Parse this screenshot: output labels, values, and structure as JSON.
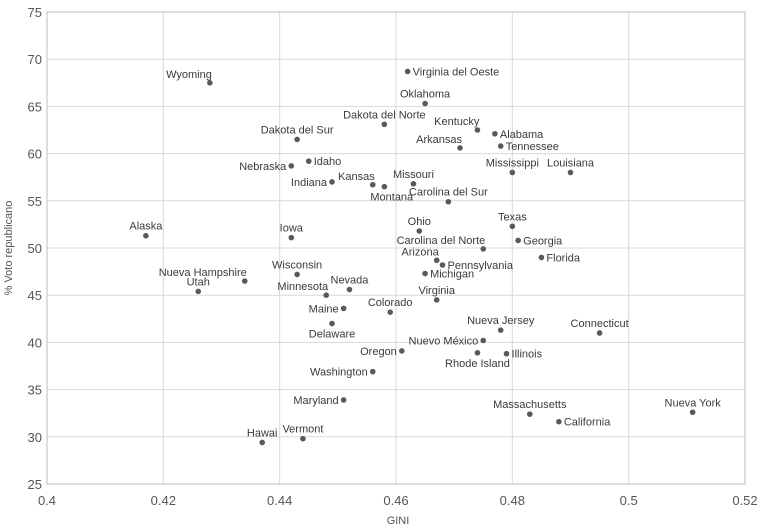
{
  "chart_data": {
    "type": "scatter",
    "title": "",
    "xlabel": "GINI",
    "ylabel": "% Voto republicano",
    "xlim": [
      0.4,
      0.52
    ],
    "ylim": [
      25,
      75
    ],
    "x_ticks": [
      0.4,
      0.42,
      0.44,
      0.46,
      0.48,
      0.5,
      0.52
    ],
    "x_tick_labels": [
      "0.4",
      "0.42",
      "0.44",
      "0.46",
      "0.48",
      "0.5",
      "0.52"
    ],
    "y_ticks": [
      25,
      30,
      35,
      40,
      45,
      50,
      55,
      60,
      65,
      70,
      75
    ],
    "y_tick_labels": [
      "25",
      "30",
      "35",
      "40",
      "45",
      "50",
      "55",
      "60",
      "65",
      "70",
      "75"
    ],
    "grid": true,
    "point_color": "#595959",
    "points": [
      {
        "label": "Wyoming",
        "x": 0.428,
        "y": 67.5,
        "pos": "tl"
      },
      {
        "label": "Virginia del Oeste",
        "x": 0.462,
        "y": 68.7,
        "pos": "r"
      },
      {
        "label": "Oklahoma",
        "x": 0.465,
        "y": 65.3,
        "pos": "tc"
      },
      {
        "label": "Dakota del Norte",
        "x": 0.458,
        "y": 63.1,
        "pos": "tc"
      },
      {
        "label": "Kentucky",
        "x": 0.474,
        "y": 62.5,
        "pos": "tl"
      },
      {
        "label": "Alabama",
        "x": 0.477,
        "y": 62.1,
        "pos": "r"
      },
      {
        "label": "Dakota del Sur",
        "x": 0.443,
        "y": 61.5,
        "pos": "tc"
      },
      {
        "label": "Tennessee",
        "x": 0.478,
        "y": 60.8,
        "pos": "r"
      },
      {
        "label": "Arkansas",
        "x": 0.471,
        "y": 60.6,
        "pos": "tl"
      },
      {
        "label": "Idaho",
        "x": 0.445,
        "y": 59.2,
        "pos": "r"
      },
      {
        "label": "Nebraska",
        "x": 0.442,
        "y": 58.7,
        "pos": "l"
      },
      {
        "label": "Mississippi",
        "x": 0.48,
        "y": 58.0,
        "pos": "tc"
      },
      {
        "label": "Louisiana",
        "x": 0.49,
        "y": 58.0,
        "pos": "tc"
      },
      {
        "label": "Indiana",
        "x": 0.449,
        "y": 57.0,
        "pos": "l"
      },
      {
        "label": "Kansas",
        "x": 0.456,
        "y": 56.7,
        "pos": "tl"
      },
      {
        "label": "Missouri",
        "x": 0.463,
        "y": 56.8,
        "pos": "tc"
      },
      {
        "label": "Montana",
        "x": 0.458,
        "y": 56.5,
        "pos": "br"
      },
      {
        "label": "Carolina del Sur",
        "x": 0.469,
        "y": 54.9,
        "pos": "tc"
      },
      {
        "label": "Alaska",
        "x": 0.417,
        "y": 51.3,
        "pos": "tc"
      },
      {
        "label": "Iowa",
        "x": 0.442,
        "y": 51.1,
        "pos": "tc"
      },
      {
        "label": "Ohio",
        "x": 0.464,
        "y": 51.8,
        "pos": "tc"
      },
      {
        "label": "Texas",
        "x": 0.48,
        "y": 52.3,
        "pos": "tc"
      },
      {
        "label": "Carolina del Norte",
        "x": 0.475,
        "y": 49.9,
        "pos": "tl"
      },
      {
        "label": "Georgia",
        "x": 0.481,
        "y": 50.8,
        "pos": "r"
      },
      {
        "label": "Florida",
        "x": 0.485,
        "y": 49.0,
        "pos": "r"
      },
      {
        "label": "Arizona",
        "x": 0.467,
        "y": 48.7,
        "pos": "tl"
      },
      {
        "label": "Pennsylvania",
        "x": 0.468,
        "y": 48.2,
        "pos": "r"
      },
      {
        "label": "Michigan",
        "x": 0.465,
        "y": 47.3,
        "pos": "r"
      },
      {
        "label": "Wisconsin",
        "x": 0.443,
        "y": 47.2,
        "pos": "tc"
      },
      {
        "label": "Nueva Hampshire",
        "x": 0.434,
        "y": 46.5,
        "pos": "tl"
      },
      {
        "label": "Utah",
        "x": 0.426,
        "y": 45.4,
        "pos": "tc"
      },
      {
        "label": "Nevada",
        "x": 0.452,
        "y": 45.6,
        "pos": "tc"
      },
      {
        "label": "Minnesota",
        "x": 0.448,
        "y": 45.0,
        "pos": "tl"
      },
      {
        "label": "Virginia",
        "x": 0.467,
        "y": 44.5,
        "pos": "tc"
      },
      {
        "label": "Maine",
        "x": 0.451,
        "y": 43.6,
        "pos": "l"
      },
      {
        "label": "Colorado",
        "x": 0.459,
        "y": 43.2,
        "pos": "tc"
      },
      {
        "label": "Nueva Jersey",
        "x": 0.478,
        "y": 41.3,
        "pos": "tc"
      },
      {
        "label": "Connecticut",
        "x": 0.495,
        "y": 41.0,
        "pos": "tc"
      },
      {
        "label": "Delaware",
        "x": 0.449,
        "y": 42.0,
        "pos": "b"
      },
      {
        "label": "Nuevo México",
        "x": 0.475,
        "y": 40.2,
        "pos": "l"
      },
      {
        "label": "Oregon",
        "x": 0.461,
        "y": 39.1,
        "pos": "l"
      },
      {
        "label": "Illinois",
        "x": 0.479,
        "y": 38.8,
        "pos": "r"
      },
      {
        "label": "Rhode Island",
        "x": 0.474,
        "y": 38.9,
        "pos": "b"
      },
      {
        "label": "Washington",
        "x": 0.456,
        "y": 36.9,
        "pos": "l"
      },
      {
        "label": "Maryland",
        "x": 0.451,
        "y": 33.9,
        "pos": "l"
      },
      {
        "label": "Massachusetts",
        "x": 0.483,
        "y": 32.4,
        "pos": "tc"
      },
      {
        "label": "California",
        "x": 0.488,
        "y": 31.6,
        "pos": "r"
      },
      {
        "label": "Nueva York",
        "x": 0.511,
        "y": 32.6,
        "pos": "tc"
      },
      {
        "label": "Hawai",
        "x": 0.437,
        "y": 29.4,
        "pos": "tc"
      },
      {
        "label": "Vermont",
        "x": 0.444,
        "y": 29.8,
        "pos": "tc"
      }
    ]
  }
}
